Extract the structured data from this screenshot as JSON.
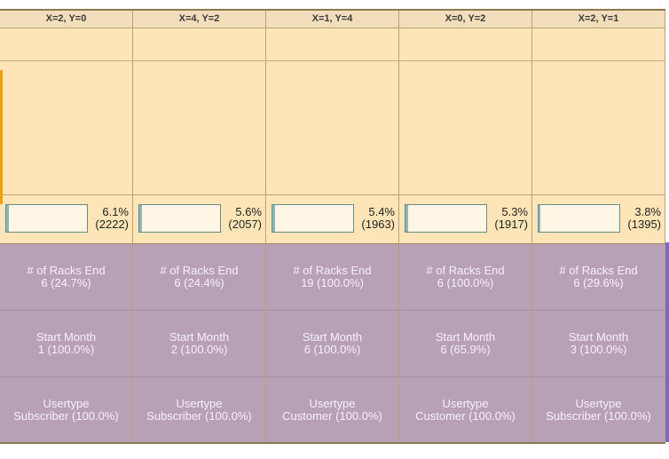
{
  "columns": [
    {
      "header": "X=2, Y=0",
      "fraction": 0.061,
      "pct": "6.1%",
      "count": "(2222)",
      "cells": [
        {
          "label": "# of Racks End",
          "value": "6 (24.7%)"
        },
        {
          "label": "Start Month",
          "value": "1 (100.0%)"
        },
        {
          "label": "Usertype",
          "value": "Subscriber (100.0%)"
        }
      ]
    },
    {
      "header": "X=4, Y=2",
      "fraction": 0.056,
      "pct": "5.6%",
      "count": "(2057)",
      "cells": [
        {
          "label": "# of Racks End",
          "value": "6 (24.4%)"
        },
        {
          "label": "Start Month",
          "value": "2 (100.0%)"
        },
        {
          "label": "Usertype",
          "value": "Subscriber (100.0%)"
        }
      ]
    },
    {
      "header": "X=1, Y=4",
      "fraction": 0.054,
      "pct": "5.4%",
      "count": "(1963)",
      "cells": [
        {
          "label": "# of Racks End",
          "value": "19 (100.0%)"
        },
        {
          "label": "Start Month",
          "value": "6 (100.0%)"
        },
        {
          "label": "Usertype",
          "value": "Customer (100.0%)"
        }
      ]
    },
    {
      "header": "X=0, Y=2",
      "fraction": 0.053,
      "pct": "5.3%",
      "count": "(1917)",
      "cells": [
        {
          "label": "# of Racks End",
          "value": "6 (100.0%)"
        },
        {
          "label": "Start Month",
          "value": "6 (65.9%)"
        },
        {
          "label": "Usertype",
          "value": "Customer (100.0%)"
        }
      ]
    },
    {
      "header": "X=2, Y=1",
      "fraction": 0.038,
      "pct": "3.8%",
      "count": "(1395)",
      "cells": [
        {
          "label": "# of Racks End",
          "value": "6 (29.6%)"
        },
        {
          "label": "Start Month",
          "value": "3 (100.0%)"
        },
        {
          "label": "Usertype",
          "value": "Subscriber (100.0%)"
        }
      ]
    }
  ]
}
